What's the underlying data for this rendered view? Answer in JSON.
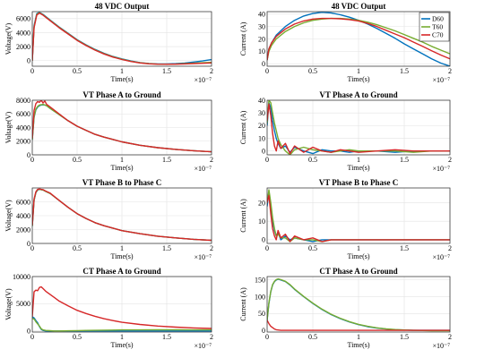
{
  "figure": {
    "x_exponent_label": "×10⁻⁷",
    "legend": [
      "D60",
      "T60",
      "C70"
    ],
    "colors": {
      "D60": "#0072BD",
      "T60": "#77AC30",
      "C70": "#D62728"
    }
  },
  "chart_data": [
    {
      "type": "line",
      "title": "48 VDC Output",
      "xlabel": "Time(s)",
      "ylabel": "Voltage(V)",
      "xlim": [
        0,
        2
      ],
      "ylim": [
        -800,
        7000
      ],
      "xticks": [
        "0",
        "0.5",
        "1",
        "1.5",
        "2"
      ],
      "yticks": [
        0,
        2000,
        4000,
        6000
      ],
      "x": [
        0,
        0.02,
        0.05,
        0.08,
        0.12,
        0.2,
        0.3,
        0.4,
        0.5,
        0.6,
        0.7,
        0.8,
        0.9,
        1.0,
        1.1,
        1.2,
        1.3,
        1.4,
        1.5,
        1.6,
        1.7,
        1.8,
        1.9,
        2.0
      ],
      "series": [
        {
          "name": "D60",
          "values": [
            0,
            5000,
            6700,
            6900,
            6600,
            5800,
            4800,
            3900,
            3000,
            2250,
            1600,
            1050,
            600,
            250,
            -50,
            -270,
            -400,
            -470,
            -480,
            -430,
            -340,
            -200,
            -40,
            150
          ]
        },
        {
          "name": "T60",
          "values": [
            0,
            4800,
            6600,
            6850,
            6550,
            5750,
            4750,
            3850,
            2950,
            2200,
            1550,
            1000,
            560,
            200,
            -80,
            -300,
            -430,
            -500,
            -520,
            -490,
            -430,
            -360,
            -300,
            -250
          ]
        },
        {
          "name": "C70",
          "values": [
            0,
            4700,
            6500,
            6800,
            6500,
            5700,
            4700,
            3800,
            2900,
            2150,
            1500,
            950,
            510,
            160,
            -120,
            -330,
            -450,
            -510,
            -520,
            -500,
            -470,
            -420,
            -380,
            -330
          ]
        }
      ]
    },
    {
      "type": "line",
      "title": "48 VDC Output",
      "xlabel": "Time(s)",
      "ylabel": "Current (A)",
      "xlim": [
        0,
        2
      ],
      "ylim": [
        -2,
        42
      ],
      "xticks": [
        "0",
        "0.5",
        "1",
        "1.5",
        "2"
      ],
      "yticks": [
        0,
        10,
        20,
        30,
        40
      ],
      "x": [
        0,
        0.02,
        0.05,
        0.1,
        0.2,
        0.3,
        0.4,
        0.5,
        0.6,
        0.7,
        0.8,
        0.9,
        1.0,
        1.1,
        1.2,
        1.3,
        1.4,
        1.5,
        1.6,
        1.7,
        1.8,
        1.9,
        2.0
      ],
      "series": [
        {
          "name": "D60",
          "values": [
            3,
            12,
            17,
            23,
            30,
            35,
            38.5,
            40.5,
            41.5,
            41,
            39.5,
            37.5,
            35,
            32,
            28.5,
            24.5,
            20.5,
            16,
            12,
            8,
            4,
            0.5,
            -2
          ]
        },
        {
          "name": "T60",
          "values": [
            3,
            10,
            15,
            20,
            26,
            30,
            33,
            35,
            36,
            36.5,
            36.5,
            36,
            35,
            33.5,
            31.5,
            29,
            26.5,
            23.5,
            20.5,
            17.5,
            14,
            11,
            8
          ]
        },
        {
          "name": "C70",
          "values": [
            3,
            12,
            17,
            22,
            28,
            32,
            34.5,
            36,
            36.5,
            36.5,
            36.2,
            35.6,
            34.5,
            32.5,
            30,
            27,
            24,
            21,
            17.5,
            14,
            10.5,
            7,
            4
          ]
        }
      ]
    },
    {
      "type": "line",
      "title": "VT Phase A to Ground",
      "xlabel": "Time(s)",
      "ylabel": "Voltage(V)",
      "xlim": [
        0,
        2
      ],
      "ylim": [
        0,
        8000
      ],
      "xticks": [
        "0",
        "0.5",
        "1",
        "1.5",
        "2"
      ],
      "yticks": [
        0,
        2000,
        4000,
        6000,
        8000
      ],
      "x": [
        0,
        0.02,
        0.04,
        0.06,
        0.08,
        0.1,
        0.12,
        0.14,
        0.16,
        0.2,
        0.3,
        0.4,
        0.5,
        0.6,
        0.7,
        0.8,
        0.9,
        1.0,
        1.2,
        1.4,
        1.6,
        1.8,
        2.0
      ],
      "series": [
        {
          "name": "D60",
          "values": [
            2200,
            5500,
            6600,
            7000,
            7200,
            7300,
            7350,
            7300,
            7200,
            6800,
            5900,
            5000,
            4200,
            3600,
            3000,
            2600,
            2250,
            1900,
            1400,
            1050,
            800,
            600,
            450
          ]
        },
        {
          "name": "T60",
          "values": [
            2200,
            5600,
            6700,
            7100,
            7300,
            7350,
            7400,
            7300,
            7200,
            6800,
            5900,
            5000,
            4200,
            3600,
            3000,
            2600,
            2250,
            1900,
            1400,
            1050,
            800,
            600,
            450
          ]
        },
        {
          "name": "C70",
          "values": [
            2400,
            6500,
            7500,
            7800,
            7700,
            8000,
            7600,
            7900,
            7400,
            7000,
            6000,
            5000,
            4200,
            3600,
            3000,
            2600,
            2250,
            1900,
            1400,
            1050,
            800,
            600,
            450
          ]
        }
      ]
    },
    {
      "type": "line",
      "title": "VT Phase A to Ground",
      "xlabel": "Time(s)",
      "ylabel": "Current (A)",
      "xlim": [
        0,
        2
      ],
      "ylim": [
        -3,
        40
      ],
      "xticks": [
        "0",
        "0.5",
        "1",
        "1.5",
        "2"
      ],
      "yticks": [
        0,
        10,
        20,
        30,
        40
      ],
      "x": [
        0,
        0.02,
        0.04,
        0.06,
        0.08,
        0.1,
        0.12,
        0.15,
        0.2,
        0.25,
        0.3,
        0.4,
        0.5,
        0.6,
        0.7,
        0.8,
        0.9,
        1.0,
        1.2,
        1.4,
        1.6,
        1.8,
        2.0
      ],
      "series": [
        {
          "name": "D60",
          "values": [
            20,
            38,
            34,
            24,
            16,
            10,
            6,
            2,
            4,
            -1,
            3,
            0,
            -2,
            1,
            0,
            0,
            -1,
            0,
            0,
            -1,
            0,
            0,
            0
          ]
        },
        {
          "name": "T60",
          "values": [
            22,
            40,
            38,
            30,
            22,
            16,
            10,
            5,
            0,
            -3,
            1,
            3,
            1,
            0,
            -1,
            0,
            1,
            0,
            0,
            0,
            -1,
            0,
            0
          ]
        },
        {
          "name": "C70",
          "values": [
            24,
            37,
            28,
            14,
            4,
            0,
            8,
            2,
            6,
            -2,
            4,
            -1,
            3,
            0,
            -1,
            1,
            0,
            -1,
            0,
            1,
            0,
            0,
            0
          ]
        }
      ]
    },
    {
      "type": "line",
      "title": "VT Phase B to Phase C",
      "xlabel": "Time(s)",
      "ylabel": "Voltage(V)",
      "xlim": [
        0,
        2
      ],
      "ylim": [
        0,
        8000
      ],
      "xticks": [
        "0",
        "0.5",
        "1",
        "1.5",
        "2"
      ],
      "yticks": [
        0,
        2000,
        4000,
        6000
      ],
      "x": [
        0,
        0.02,
        0.04,
        0.06,
        0.08,
        0.1,
        0.12,
        0.15,
        0.2,
        0.3,
        0.4,
        0.5,
        0.6,
        0.7,
        0.8,
        0.9,
        1.0,
        1.2,
        1.4,
        1.6,
        1.8,
        2.0
      ],
      "series": [
        {
          "name": "D60",
          "values": [
            2500,
            6200,
            7300,
            7700,
            7800,
            7750,
            7700,
            7500,
            7200,
            6200,
            5200,
            4300,
            3600,
            3000,
            2550,
            2200,
            1850,
            1400,
            1050,
            800,
            600,
            450
          ]
        },
        {
          "name": "T60",
          "values": [
            2500,
            6250,
            7350,
            7750,
            7800,
            7750,
            7700,
            7500,
            7200,
            6200,
            5200,
            4300,
            3600,
            3000,
            2550,
            2200,
            1850,
            1400,
            1050,
            800,
            600,
            450
          ]
        },
        {
          "name": "C70",
          "values": [
            2600,
            6400,
            7450,
            7800,
            7850,
            7800,
            7750,
            7550,
            7250,
            6200,
            5200,
            4300,
            3600,
            3000,
            2550,
            2200,
            1850,
            1400,
            1050,
            800,
            600,
            450
          ]
        }
      ]
    },
    {
      "type": "line",
      "title": "VT Phase B to Phase C",
      "xlabel": "Time(s)",
      "ylabel": "Current (A)",
      "xlim": [
        0,
        2
      ],
      "ylim": [
        -2,
        28
      ],
      "xticks": [
        "0",
        "0.5",
        "1",
        "1.5",
        "2"
      ],
      "yticks": [
        0,
        10,
        20
      ],
      "x": [
        0,
        0.02,
        0.04,
        0.06,
        0.08,
        0.1,
        0.12,
        0.15,
        0.2,
        0.25,
        0.3,
        0.4,
        0.5,
        0.6,
        0.7,
        0.8,
        0.9,
        1.0,
        1.2,
        1.4,
        1.6,
        1.8,
        2.0
      ],
      "series": [
        {
          "name": "D60",
          "values": [
            18,
            26,
            18,
            10,
            5,
            2,
            4,
            0,
            2,
            0,
            1,
            0,
            -1,
            0,
            0,
            0,
            0,
            0,
            0,
            0,
            0,
            0,
            0
          ]
        },
        {
          "name": "T60",
          "values": [
            20,
            27,
            20,
            12,
            6,
            2,
            3,
            1,
            1,
            -1,
            1,
            0,
            0,
            -1,
            0,
            0,
            0,
            0,
            0,
            0,
            0,
            0,
            0
          ]
        },
        {
          "name": "C70",
          "values": [
            20,
            24,
            14,
            6,
            2,
            0,
            5,
            1,
            3,
            -1,
            2,
            0,
            1,
            -1,
            0,
            0,
            0,
            0,
            0,
            0,
            0,
            0,
            0
          ]
        }
      ]
    },
    {
      "type": "line",
      "title": "CT Phase A to Ground",
      "xlabel": "Time(s)",
      "ylabel": "Voltage(V)",
      "xlim": [
        0,
        2
      ],
      "ylim": [
        -200,
        10000
      ],
      "xticks": [
        "0",
        "0.5",
        "1",
        "1.5",
        "2"
      ],
      "yticks": [
        0,
        5000,
        10000
      ],
      "x": [
        0,
        0.02,
        0.04,
        0.06,
        0.08,
        0.1,
        0.12,
        0.15,
        0.2,
        0.25,
        0.3,
        0.4,
        0.5,
        0.6,
        0.7,
        0.8,
        0.9,
        1.0,
        1.2,
        1.4,
        1.6,
        1.8,
        2.0
      ],
      "series": [
        {
          "name": "D60",
          "values": [
            2600,
            2400,
            1900,
            1500,
            800,
            300,
            100,
            0,
            -50,
            0,
            0,
            0,
            0,
            0,
            0,
            0,
            0,
            0,
            0,
            0,
            0,
            0,
            0
          ]
        },
        {
          "name": "T60",
          "values": [
            2300,
            2200,
            1700,
            1300,
            900,
            400,
            200,
            100,
            50,
            0,
            0,
            30,
            60,
            90,
            120,
            150,
            170,
            190,
            200,
            210,
            210,
            200,
            200
          ]
        },
        {
          "name": "C70",
          "values": [
            2600,
            7200,
            7500,
            7400,
            8000,
            8100,
            7800,
            7300,
            6700,
            6100,
            5500,
            4600,
            3800,
            3200,
            2700,
            2250,
            1900,
            1600,
            1200,
            900,
            700,
            550,
            450
          ]
        }
      ]
    },
    {
      "type": "line",
      "title": "CT Phase A to Ground",
      "xlabel": "Time(s)",
      "ylabel": "Current (A)",
      "xlim": [
        0,
        2
      ],
      "ylim": [
        -5,
        160
      ],
      "xticks": [
        "0",
        "0.5",
        "1",
        "1.5",
        "2"
      ],
      "yticks": [
        0,
        50,
        100,
        150
      ],
      "x": [
        0,
        0.02,
        0.04,
        0.06,
        0.08,
        0.1,
        0.12,
        0.15,
        0.2,
        0.25,
        0.3,
        0.4,
        0.5,
        0.6,
        0.7,
        0.8,
        0.9,
        1.0,
        1.1,
        1.2,
        1.3,
        1.4,
        1.5,
        1.6,
        1.8,
        2.0
      ],
      "series": [
        {
          "name": "D60",
          "values": [
            30,
            80,
            115,
            135,
            145,
            150,
            152,
            150,
            145,
            135,
            122,
            100,
            80,
            62,
            47,
            35,
            25,
            17,
            11,
            7,
            4,
            2,
            1,
            0,
            0,
            0
          ]
        },
        {
          "name": "T60",
          "values": [
            30,
            82,
            116,
            136,
            146,
            151,
            153,
            151,
            146,
            136,
            123,
            101,
            81,
            63,
            48,
            36,
            26,
            18,
            12,
            7.5,
            4.5,
            2.5,
            1,
            0,
            -1,
            -1
          ]
        },
        {
          "name": "C70",
          "values": [
            30,
            20,
            12,
            8,
            4,
            2,
            1,
            0,
            0,
            0,
            0,
            0,
            0,
            0,
            0,
            0,
            0,
            0,
            0,
            0,
            0,
            0,
            0,
            0,
            0,
            0
          ]
        }
      ]
    }
  ]
}
